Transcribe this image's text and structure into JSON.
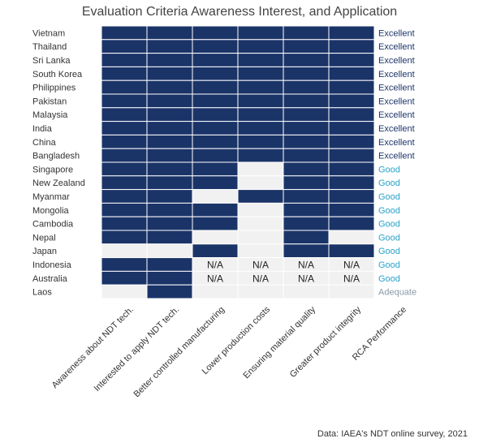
{
  "title": "Evaluation Criteria Awareness Interest, and Application",
  "source": "Data: IAEA's NDT online survey, 2021",
  "colors": {
    "filled": "#1b3468",
    "empty": "#f1f1f1",
    "Excellent": "#1b3468",
    "Good": "#29a3c9",
    "Adequate": "#8a9aa6"
  },
  "chart_data": {
    "type": "heatmap",
    "columns": [
      "Awareness about NDT tech.",
      "Interested to apply NDT tech.",
      "Better controlled manufacturing",
      "Lower production costs",
      "Ensuring material quality",
      "Greater product integrity",
      "RCA Performance"
    ],
    "rows": [
      {
        "country": "Vietnam",
        "cells": [
          1,
          1,
          1,
          1,
          1,
          1
        ],
        "rca": "Excellent"
      },
      {
        "country": "Thailand",
        "cells": [
          1,
          1,
          1,
          1,
          1,
          1
        ],
        "rca": "Excellent"
      },
      {
        "country": "Sri Lanka",
        "cells": [
          1,
          1,
          1,
          1,
          1,
          1
        ],
        "rca": "Excellent"
      },
      {
        "country": "South Korea",
        "cells": [
          1,
          1,
          1,
          1,
          1,
          1
        ],
        "rca": "Excellent"
      },
      {
        "country": "Philippines",
        "cells": [
          1,
          1,
          1,
          1,
          1,
          1
        ],
        "rca": "Excellent"
      },
      {
        "country": "Pakistan",
        "cells": [
          1,
          1,
          1,
          1,
          1,
          1
        ],
        "rca": "Excellent"
      },
      {
        "country": "Malaysia",
        "cells": [
          1,
          1,
          1,
          1,
          1,
          1
        ],
        "rca": "Excellent"
      },
      {
        "country": "India",
        "cells": [
          1,
          1,
          1,
          1,
          1,
          1
        ],
        "rca": "Excellent"
      },
      {
        "country": "China",
        "cells": [
          1,
          1,
          1,
          1,
          1,
          1
        ],
        "rca": "Excellent"
      },
      {
        "country": "Bangladesh",
        "cells": [
          1,
          1,
          1,
          1,
          1,
          1
        ],
        "rca": "Excellent"
      },
      {
        "country": "Singapore",
        "cells": [
          1,
          1,
          1,
          0,
          1,
          1
        ],
        "rca": "Good"
      },
      {
        "country": "New Zealand",
        "cells": [
          1,
          1,
          1,
          0,
          1,
          1
        ],
        "rca": "Good"
      },
      {
        "country": "Myanmar",
        "cells": [
          1,
          1,
          0,
          1,
          1,
          1
        ],
        "rca": "Good"
      },
      {
        "country": "Mongolia",
        "cells": [
          1,
          1,
          1,
          0,
          1,
          1
        ],
        "rca": "Good"
      },
      {
        "country": "Cambodia",
        "cells": [
          1,
          1,
          1,
          0,
          1,
          1
        ],
        "rca": "Good"
      },
      {
        "country": "Nepal",
        "cells": [
          1,
          1,
          0,
          0,
          1,
          0
        ],
        "rca": "Good"
      },
      {
        "country": "Japan",
        "cells": [
          0,
          0,
          1,
          0,
          1,
          1
        ],
        "rca": "Good"
      },
      {
        "country": "Indonesia",
        "cells": [
          1,
          1,
          "N/A",
          "N/A",
          "N/A",
          "N/A"
        ],
        "rca": "Good"
      },
      {
        "country": "Australia",
        "cells": [
          1,
          1,
          "N/A",
          "N/A",
          "N/A",
          "N/A"
        ],
        "rca": "Good"
      },
      {
        "country": "Laos",
        "cells": [
          0,
          1,
          0,
          0,
          0,
          0
        ],
        "rca": "Adequate"
      }
    ]
  }
}
